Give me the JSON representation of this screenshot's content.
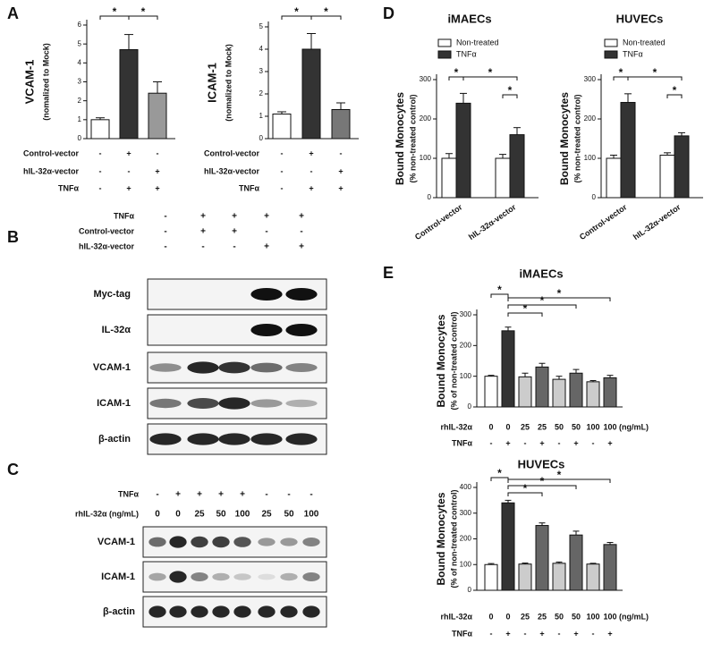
{
  "panels": [
    "A",
    "B",
    "C",
    "D",
    "E"
  ],
  "chart_data": [
    {
      "type": "bar",
      "ylabel": "VCAM-1",
      "ylabel2": "(nomalized to Mock)",
      "ylim": [
        0,
        6
      ],
      "yticks": [
        0,
        1,
        2,
        3,
        4,
        5,
        6
      ],
      "values": [
        1.0,
        4.7,
        2.4
      ],
      "errors": [
        0.1,
        0.8,
        0.6
      ],
      "colors": [
        "#ffffff",
        "#333333",
        "#999999"
      ],
      "conditions": [
        {
          "name": "Control-vector",
          "values": [
            "-",
            "+",
            "-"
          ]
        },
        {
          "name": "hIL-32α-vector",
          "values": [
            "-",
            "-",
            "+"
          ]
        },
        {
          "name": "TNFα",
          "values": [
            "-",
            "+",
            "+"
          ]
        }
      ],
      "annotations": [
        "*",
        "*"
      ]
    },
    {
      "type": "bar",
      "ylabel": "ICAM-1",
      "ylabel2": "(nomalized to Mock)",
      "ylim": [
        0,
        5
      ],
      "yticks": [
        0,
        1,
        2,
        3,
        4,
        5
      ],
      "values": [
        1.1,
        4.0,
        1.3
      ],
      "errors": [
        0.1,
        0.7,
        0.3
      ],
      "colors": [
        "#ffffff",
        "#333333",
        "#777777"
      ],
      "conditions": [
        {
          "name": "Control-vector",
          "values": [
            "-",
            "+",
            "-"
          ]
        },
        {
          "name": "hIL-32α-vector",
          "values": [
            "-",
            "-",
            "+"
          ]
        },
        {
          "name": "TNFα",
          "values": [
            "-",
            "+",
            "+"
          ]
        }
      ],
      "annotations": [
        "*",
        "*"
      ]
    },
    {
      "type": "grouped-bar",
      "title": "iMAECs",
      "ylabel": "Bound Monocytes",
      "ylabel2": "(% non-treated control)",
      "ylim": [
        0,
        300
      ],
      "yticks": [
        0,
        100,
        200,
        300
      ],
      "categories": [
        "Control-vector",
        "hIL-32α-vector"
      ],
      "series": [
        {
          "name": "Non-treated",
          "color": "#ffffff",
          "values": [
            100,
            100
          ],
          "errors": [
            12,
            10
          ]
        },
        {
          "name": "TNFα",
          "color": "#333333",
          "values": [
            240,
            160
          ],
          "errors": [
            25,
            18
          ]
        }
      ],
      "annotations": [
        "*",
        "*",
        "*"
      ]
    },
    {
      "type": "grouped-bar",
      "title": "HUVECs",
      "ylabel": "Bound Monocytes",
      "ylabel2": "(% non-treated control)",
      "ylim": [
        0,
        300
      ],
      "yticks": [
        0,
        100,
        200,
        300
      ],
      "categories": [
        "Control-vector",
        "hIL-32α-vector"
      ],
      "series": [
        {
          "name": "Non-treated",
          "color": "#ffffff",
          "values": [
            100,
            108
          ],
          "errors": [
            8,
            6
          ]
        },
        {
          "name": "TNFα",
          "color": "#333333",
          "values": [
            242,
            157
          ],
          "errors": [
            22,
            8
          ]
        }
      ],
      "annotations": [
        "*",
        "*",
        "*"
      ]
    },
    {
      "type": "bar",
      "title": "iMAECs",
      "ylabel": "Bound Monocytes",
      "ylabel2": "(% of non-treated control)",
      "ylim": [
        0,
        300
      ],
      "yticks": [
        0,
        100,
        200,
        300
      ],
      "values": [
        100,
        248,
        98,
        130,
        90,
        110,
        82,
        95
      ],
      "errors": [
        3,
        12,
        12,
        12,
        10,
        12,
        4,
        8
      ],
      "colors": [
        "#ffffff",
        "#333333",
        "#cccccc",
        "#666666",
        "#cccccc",
        "#666666",
        "#cccccc",
        "#666666"
      ],
      "conditions": [
        {
          "name": "rhIL-32α",
          "values": [
            "0",
            "0",
            "25",
            "25",
            "50",
            "50",
            "100",
            "100"
          ],
          "unit": "(ng/mL)"
        },
        {
          "name": "TNFα",
          "values": [
            "-",
            "+",
            "-",
            "+",
            "-",
            "+",
            "-",
            "+"
          ]
        }
      ],
      "annotations": [
        "*",
        "*",
        "*",
        "*"
      ]
    },
    {
      "type": "bar",
      "title": "HUVECs",
      "ylabel": "Bound Monocytes",
      "ylabel2": "(% of non-treated control)",
      "ylim": [
        0,
        400
      ],
      "yticks": [
        0,
        100,
        200,
        300,
        400
      ],
      "values": [
        100,
        340,
        102,
        252,
        105,
        215,
        102,
        178
      ],
      "errors": [
        4,
        10,
        4,
        10,
        5,
        15,
        3,
        8
      ],
      "colors": [
        "#ffffff",
        "#333333",
        "#cccccc",
        "#666666",
        "#cccccc",
        "#666666",
        "#cccccc",
        "#666666"
      ],
      "conditions": [
        {
          "name": "rhIL-32α",
          "values": [
            "0",
            "0",
            "25",
            "25",
            "50",
            "50",
            "100",
            "100"
          ],
          "unit": "(ng/mL)"
        },
        {
          "name": "TNFα",
          "values": [
            "-",
            "+",
            "-",
            "+",
            "-",
            "+",
            "-",
            "+"
          ]
        }
      ],
      "annotations": [
        "*",
        "*",
        "*",
        "*"
      ]
    }
  ],
  "blots": [
    {
      "conditions": [
        {
          "name": "TNFα",
          "values": [
            "-",
            "+",
            "+",
            "+",
            "+"
          ]
        },
        {
          "name": "Control-vector",
          "values": [
            "-",
            "+",
            "+",
            "-",
            "-"
          ]
        },
        {
          "name": "hIL-32α-vector",
          "values": [
            "-",
            "-",
            "-",
            "+",
            "+"
          ]
        }
      ],
      "rows": [
        "Myc-tag",
        "IL-32α",
        "VCAM-1",
        "ICAM-1",
        "β-actin"
      ]
    },
    {
      "conditions": [
        {
          "name": "TNFα",
          "values": [
            "-",
            "+",
            "+",
            "+",
            "+",
            "-",
            "-",
            "-"
          ]
        },
        {
          "name": "rhIL-32α (ng/mL)",
          "values": [
            "0",
            "0",
            "25",
            "50",
            "100",
            "25",
            "50",
            "100"
          ]
        }
      ],
      "rows": [
        "VCAM-1",
        "ICAM-1",
        "β-actin"
      ]
    }
  ]
}
